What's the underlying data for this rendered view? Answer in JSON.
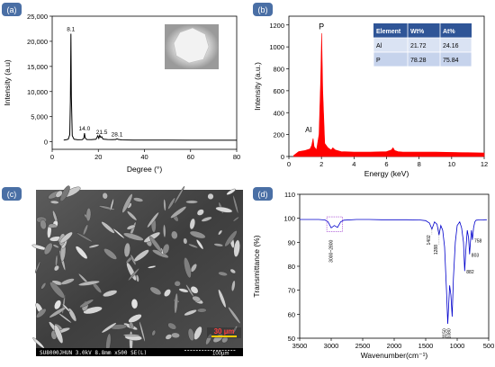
{
  "chart_data": [
    {
      "panel": "(a)",
      "type": "line",
      "xlabel": "Degree (°)",
      "ylabel": "Intensity (a.u)",
      "xlim": [
        0,
        80
      ],
      "ylim": [
        -1500,
        25000
      ],
      "xticks": [
        0,
        20,
        40,
        60,
        80
      ],
      "yticks": [
        0,
        5000,
        10000,
        15000,
        20000,
        25000
      ],
      "ytick_labels": [
        "0",
        "5,000",
        "10,000",
        "15,000",
        "20,000",
        "25,000"
      ],
      "color": "#000000",
      "series": [
        {
          "x": [
            5,
            6,
            7,
            7.6,
            7.9,
            8.1,
            8.3,
            8.7,
            9.5,
            11,
            13,
            13.7,
            14.0,
            14.3,
            15,
            17,
            19,
            19.8,
            20.2,
            20.6,
            21.0,
            21.5,
            22,
            24,
            26,
            27.5,
            28.1,
            28.7,
            30,
            35,
            40,
            50,
            60,
            70,
            80
          ],
          "y": [
            350,
            400,
            520,
            1400,
            8000,
            21500,
            9000,
            1200,
            500,
            400,
            420,
            700,
            1700,
            800,
            450,
            420,
            500,
            1200,
            700,
            1300,
            900,
            1000,
            550,
            450,
            420,
            450,
            600,
            470,
            380,
            340,
            330,
            320,
            310,
            300,
            300
          ]
        }
      ],
      "annotations": [
        {
          "text": "8.1",
          "x": 8.1,
          "y": 21500
        },
        {
          "text": "14.0",
          "x": 14.0,
          "y": 1700
        },
        {
          "text": "21.5",
          "x": 21.5,
          "y": 1000
        },
        {
          "text": "28.1",
          "x": 28.1,
          "y": 600
        }
      ]
    },
    {
      "panel": "(b)",
      "type": "area",
      "xlabel": "Energy (keV)",
      "ylabel": "Intensity (a.u.)",
      "xlim": [
        0,
        12
      ],
      "ylim": [
        0,
        1280
      ],
      "xticks": [
        0,
        2,
        4,
        6,
        8,
        10,
        12
      ],
      "yticks": [
        0,
        200,
        400,
        600,
        800,
        1000,
        1200
      ],
      "color": "#ff0000",
      "series": [
        {
          "x": [
            0.3,
            0.6,
            1.0,
            1.3,
            1.4,
            1.487,
            1.55,
            1.7,
            1.85,
            1.95,
            2.013,
            2.08,
            2.2,
            2.4,
            2.6,
            2.7,
            2.85,
            3.2,
            4.0,
            5.0,
            6.0,
            6.3,
            6.4,
            6.5,
            6.7,
            7.0,
            8.0,
            9.0,
            10.0,
            11.0,
            12.0
          ],
          "y": [
            10,
            45,
            55,
            70,
            100,
            165,
            90,
            60,
            200,
            700,
            1125,
            600,
            120,
            80,
            60,
            80,
            60,
            45,
            40,
            40,
            45,
            60,
            80,
            55,
            45,
            40,
            40,
            40,
            38,
            35,
            32
          ]
        }
      ],
      "annotations": [
        {
          "text": "P",
          "x": 2.0,
          "y": 1160
        },
        {
          "text": "Al",
          "x": 1.2,
          "y": 220
        }
      ],
      "table": {
        "headers": [
          "Element",
          "Wt%",
          "At%"
        ],
        "rows": [
          [
            "Al",
            "21.72",
            "24.16"
          ],
          [
            "P",
            "78.28",
            "75.84"
          ]
        ]
      }
    },
    {
      "panel": "(d)",
      "type": "line",
      "xlabel": "Wavenumber(cm⁻¹)",
      "ylabel": "Transmittance (%)",
      "xlim": [
        3500,
        500
      ],
      "ylim": [
        50,
        110
      ],
      "xticks": [
        3500,
        3000,
        2500,
        2000,
        1500,
        1000,
        500
      ],
      "yticks": [
        50,
        60,
        70,
        80,
        90,
        100,
        110
      ],
      "color": "#0000cc",
      "series": [
        {
          "x": [
            3500,
            3200,
            3100,
            3050,
            3000,
            2950,
            2900,
            2850,
            2800,
            2600,
            2400,
            2200,
            2000,
            1800,
            1600,
            1500,
            1440,
            1402,
            1360,
            1320,
            1288,
            1260,
            1230,
            1200,
            1170,
            1150,
            1120,
            1100,
            1080,
            1060,
            1030,
            1000,
            960,
            930,
            900,
            882,
            860,
            840,
            820,
            803,
            790,
            775,
            758,
            740,
            720,
            700,
            650,
            600,
            560,
            530
          ],
          "y": [
            99.5,
            99.5,
            99.3,
            98.5,
            96.0,
            97.0,
            96.2,
            98.5,
            99.2,
            99.5,
            99.5,
            99.4,
            99.4,
            99.4,
            99.3,
            99.0,
            98.0,
            95.5,
            98.5,
            97.5,
            93.0,
            97.0,
            95.0,
            88.0,
            70.0,
            56.0,
            72.0,
            68.0,
            59.0,
            75.0,
            90.0,
            97.0,
            98.5,
            96.0,
            90.0,
            78.0,
            88.0,
            95.0,
            92.0,
            85.0,
            90.0,
            95.0,
            91.0,
            96.0,
            98.5,
            99.2,
            99.3,
            99.3,
            99.4,
            99.4
          ]
        }
      ],
      "annotations": [
        {
          "text": "3000~2800",
          "x": 2950,
          "y": 91
        },
        {
          "text": "1402",
          "x": 1402,
          "y": 93
        },
        {
          "text": "1288",
          "x": 1288,
          "y": 89
        },
        {
          "text": "1150",
          "x": 1150,
          "y": 54
        },
        {
          "text": "1080",
          "x": 1080,
          "y": 54
        },
        {
          "text": "882",
          "x": 882,
          "y": 77
        },
        {
          "text": "803",
          "x": 803,
          "y": 84
        },
        {
          "text": "758",
          "x": 758,
          "y": 90
        }
      ]
    }
  ],
  "panel_c": {
    "label": "(c)",
    "scale_text": "30 µm",
    "footer_left": "SU8000JHUN 3.0kV 8.8mm x500 SE(L)",
    "footer_right": "100µm"
  },
  "colors": {
    "panel_label_bg": "#4a6fa5",
    "table_header_bg": "#2f5597",
    "table_row_bg": "#dae3f3"
  }
}
